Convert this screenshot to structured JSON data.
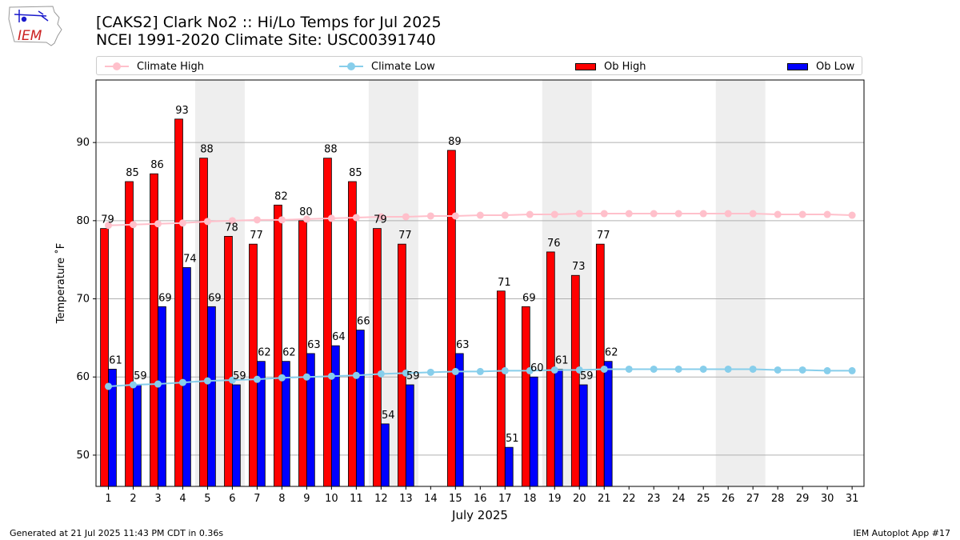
{
  "header": {
    "title_line1": "[CAKS2] Clark No2 :: Hi/Lo Temps for Jul 2025",
    "title_line2": "NCEI 1991-2020 Climate Site: USC00391740"
  },
  "logo": {
    "text": "IEM"
  },
  "legend": {
    "climate_high": "Climate High",
    "climate_low": "Climate Low",
    "ob_high": "Ob High",
    "ob_low": "Ob Low"
  },
  "footer": {
    "generated": "Generated at 21 Jul 2025 11:43 PM CDT in 0.36s",
    "app": "IEM Autoplot App #17"
  },
  "colors": {
    "ob_high": "#ff0000",
    "ob_low": "#0000ff",
    "climate_high": "#ffc0cb",
    "climate_low": "#87ceeb",
    "weekend_shade": "#eeeeee",
    "grid": "#b0b0b0"
  },
  "chart_data": {
    "type": "bar",
    "xlabel": "July 2025",
    "ylabel": "Temperature ˚F",
    "ylim": [
      46,
      98
    ],
    "yticks": [
      50,
      60,
      70,
      80,
      90
    ],
    "grid": "horizontal",
    "legend_position": "top",
    "categories": [
      "1",
      "2",
      "3",
      "4",
      "5",
      "6",
      "7",
      "8",
      "9",
      "10",
      "11",
      "12",
      "13",
      "14",
      "15",
      "16",
      "17",
      "18",
      "19",
      "20",
      "21",
      "22",
      "23",
      "24",
      "25",
      "26",
      "27",
      "28",
      "29",
      "30",
      "31"
    ],
    "weekend_spans": [
      [
        5,
        6
      ],
      [
        12,
        13
      ],
      [
        19,
        20
      ],
      [
        26,
        27
      ]
    ],
    "series": [
      {
        "name": "Ob High",
        "kind": "bar",
        "values": [
          79,
          85,
          86,
          93,
          88,
          78,
          77,
          82,
          80,
          88,
          85,
          79,
          77,
          null,
          89,
          null,
          71,
          69,
          76,
          73,
          77,
          null,
          null,
          null,
          null,
          null,
          null,
          null,
          null,
          null,
          null
        ]
      },
      {
        "name": "Ob Low",
        "kind": "bar",
        "values": [
          61,
          59,
          69,
          74,
          69,
          59,
          62,
          62,
          63,
          64,
          66,
          54,
          59,
          null,
          63,
          null,
          51,
          60,
          61,
          59,
          62,
          null,
          null,
          null,
          null,
          null,
          null,
          null,
          null,
          null,
          null
        ]
      },
      {
        "name": "Climate High",
        "kind": "line",
        "values": [
          79.4,
          79.5,
          79.6,
          79.7,
          79.9,
          80.0,
          80.1,
          80.1,
          80.2,
          80.3,
          80.4,
          80.5,
          80.5,
          80.6,
          80.6,
          80.7,
          80.7,
          80.8,
          80.8,
          80.9,
          80.9,
          80.9,
          80.9,
          80.9,
          80.9,
          80.9,
          80.9,
          80.8,
          80.8,
          80.8,
          80.7
        ]
      },
      {
        "name": "Climate Low",
        "kind": "line",
        "values": [
          58.8,
          59.0,
          59.1,
          59.3,
          59.5,
          59.6,
          59.7,
          59.9,
          60.0,
          60.1,
          60.2,
          60.4,
          60.5,
          60.6,
          60.7,
          60.7,
          60.8,
          60.8,
          60.9,
          60.9,
          61.0,
          61.0,
          61.0,
          61.0,
          61.0,
          61.0,
          61.0,
          60.9,
          60.9,
          60.8,
          60.8
        ]
      }
    ]
  }
}
